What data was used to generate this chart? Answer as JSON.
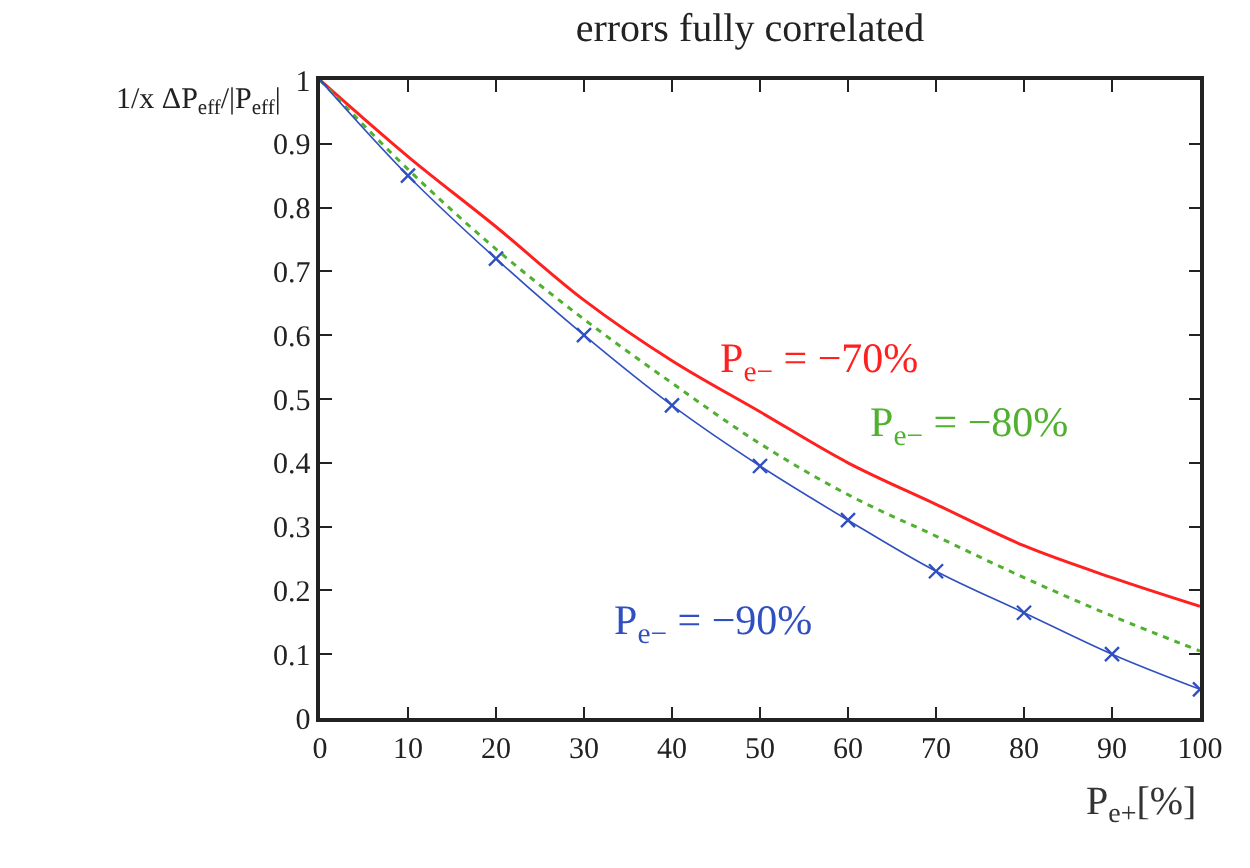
{
  "chart_data": {
    "type": "line",
    "title": "errors fully correlated",
    "xlabel": "P$_{e+}$[%]",
    "ylabel": "1/x ΔP$_{eff}$/|P$_{eff}$|",
    "x": [
      0,
      10,
      20,
      30,
      40,
      50,
      60,
      70,
      80,
      90,
      100
    ],
    "series": [
      {
        "name": "P$_{e−}$ = −70%",
        "color": "#ff2020",
        "line_style": "solid",
        "marker": "none",
        "values": [
          1,
          0.88,
          0.77,
          0.655,
          0.56,
          0.48,
          0.4,
          0.335,
          0.27,
          0.22,
          0.175
        ]
      },
      {
        "name": "P$_{e−}$ = −80%",
        "color": "#50b030",
        "line_style": "dotted",
        "marker": "none",
        "values": [
          1,
          0.86,
          0.735,
          0.625,
          0.525,
          0.43,
          0.35,
          0.285,
          0.22,
          0.16,
          0.105
        ]
      },
      {
        "name": "P$_{e−}$ = −90%",
        "color": "#3050c0",
        "line_style": "solid",
        "marker": "cross",
        "values": [
          1,
          0.85,
          0.72,
          0.6,
          0.49,
          0.395,
          0.31,
          0.23,
          0.165,
          0.1,
          0.045
        ]
      }
    ],
    "xlim": [
      0,
      100
    ],
    "ylim": [
      0,
      1
    ],
    "xticks": [
      0,
      10,
      20,
      30,
      40,
      50,
      60,
      70,
      80,
      90,
      100
    ],
    "yticks": [
      0,
      0.1,
      0.2,
      0.3,
      0.4,
      0.5,
      0.6,
      0.7,
      0.8,
      0.9,
      1
    ],
    "legend": false
  }
}
